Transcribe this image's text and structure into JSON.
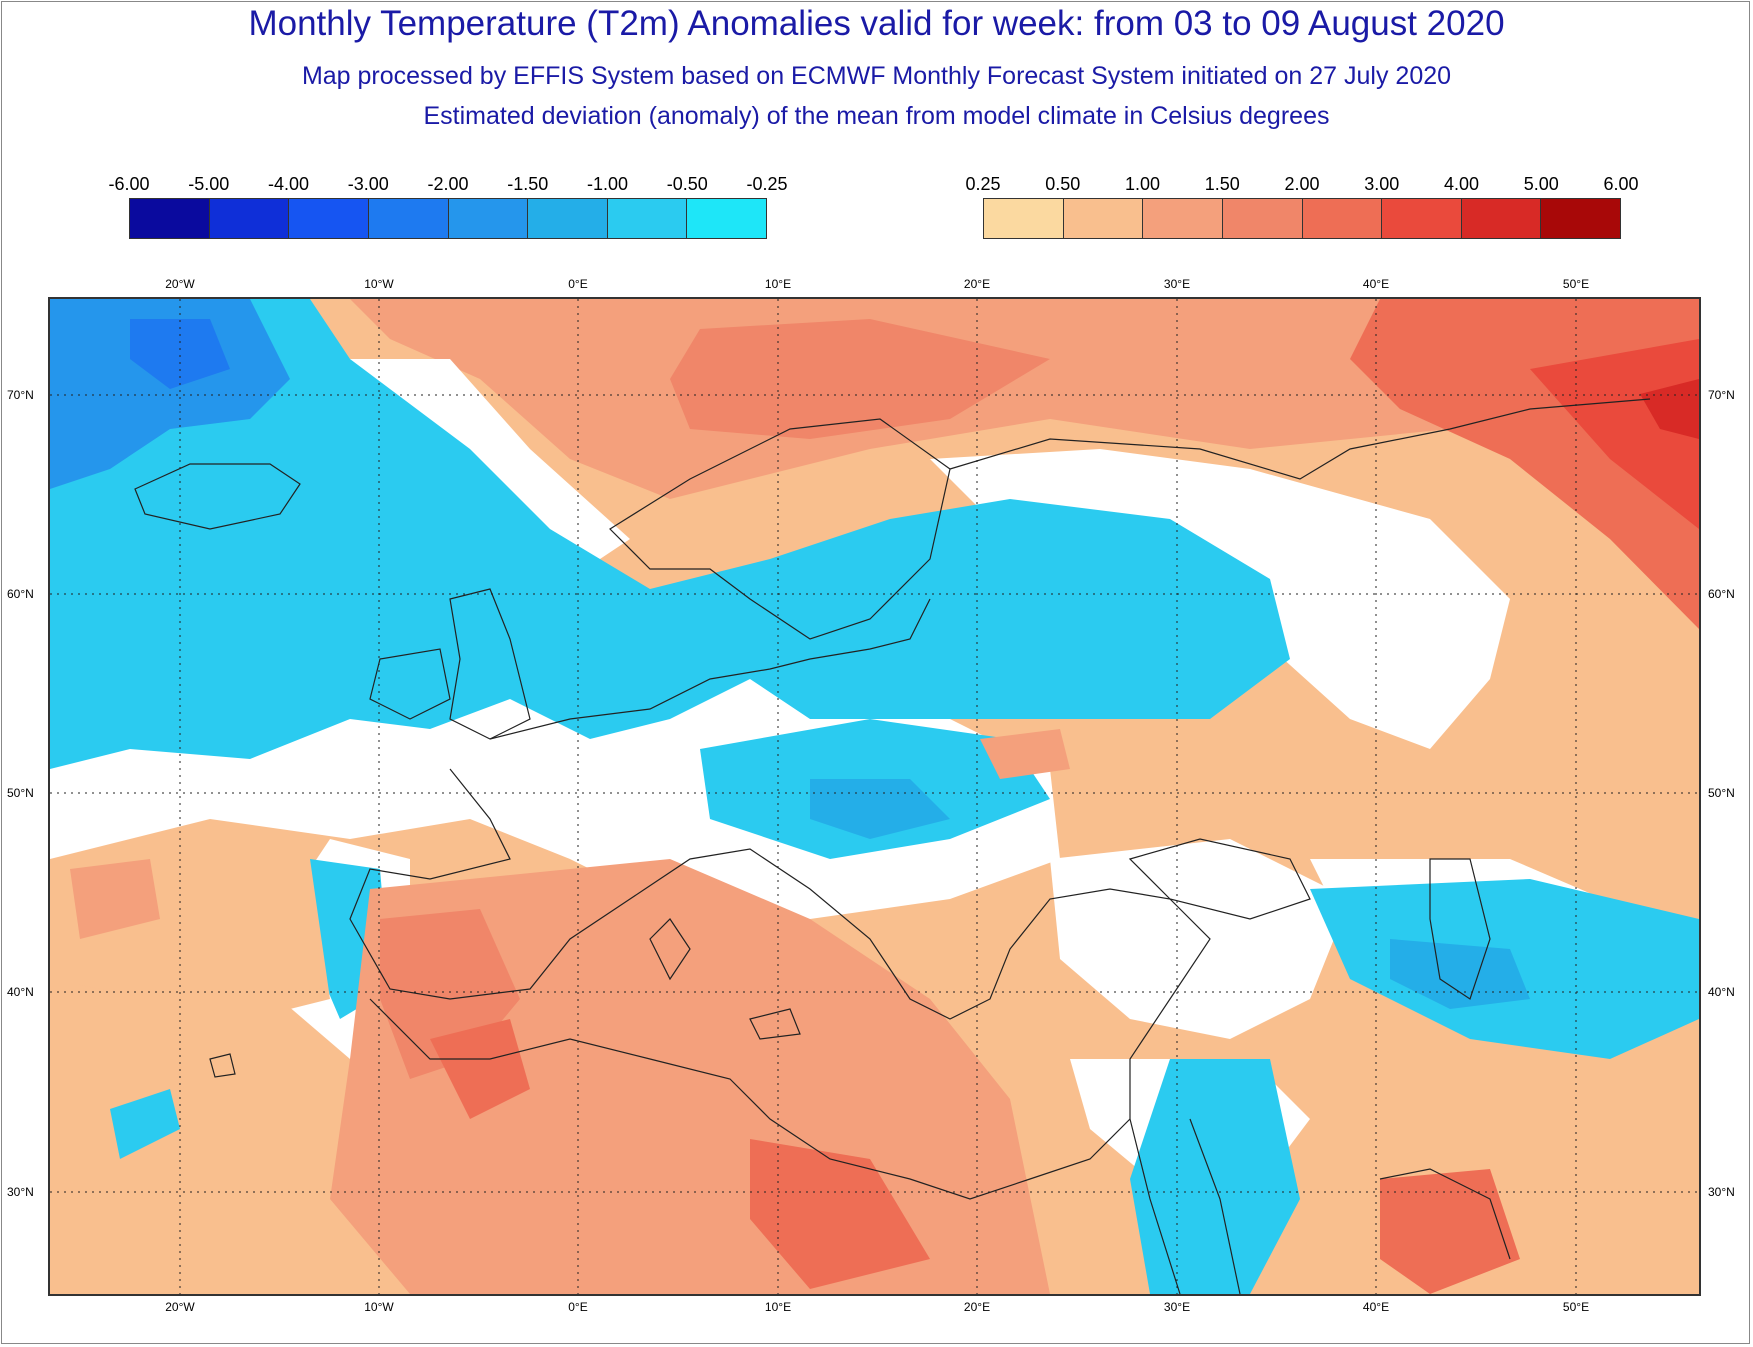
{
  "header": {
    "title": "Monthly Temperature (T2m) Anomalies valid for week: from 03 to 09 August 2020",
    "subtitle": "Map processed by EFFIS System based on ECMWF Monthly Forecast System initiated on 27 July 2020",
    "description": "Estimated deviation (anomaly) of the mean from model climate in Celsius degrees"
  },
  "legend": {
    "negative": {
      "ticks": [
        "-6.00",
        "-5.00",
        "-4.00",
        "-3.00",
        "-2.00",
        "-1.50",
        "-1.00",
        "-0.50",
        "-0.25"
      ],
      "colors": [
        "#0a0a9e",
        "#0f2fd8",
        "#1655f2",
        "#1e7af0",
        "#2596ec",
        "#24aee8",
        "#2bcbf0",
        "#1ee6f8"
      ]
    },
    "positive": {
      "ticks": [
        "0.25",
        "0.50",
        "1.00",
        "1.50",
        "2.00",
        "3.00",
        "4.00",
        "5.00",
        "6.00"
      ],
      "colors": [
        "#fbd9a0",
        "#f9bf8e",
        "#f4a07c",
        "#f08669",
        "#ee6e55",
        "#ea4a3c",
        "#d82a26",
        "#a80808"
      ]
    }
  },
  "map": {
    "lon_labels": [
      "20°W",
      "10°W",
      "0°E",
      "10°E",
      "20°E",
      "30°E",
      "40°E",
      "50°E"
    ],
    "lat_labels": [
      "70°N",
      "60°N",
      "50°N",
      "40°N",
      "30°N"
    ],
    "colors": {
      "neutral": "#ffffff",
      "coast": "#222222",
      "grid": "#222222",
      "contour": "#b5b5b5"
    }
  }
}
